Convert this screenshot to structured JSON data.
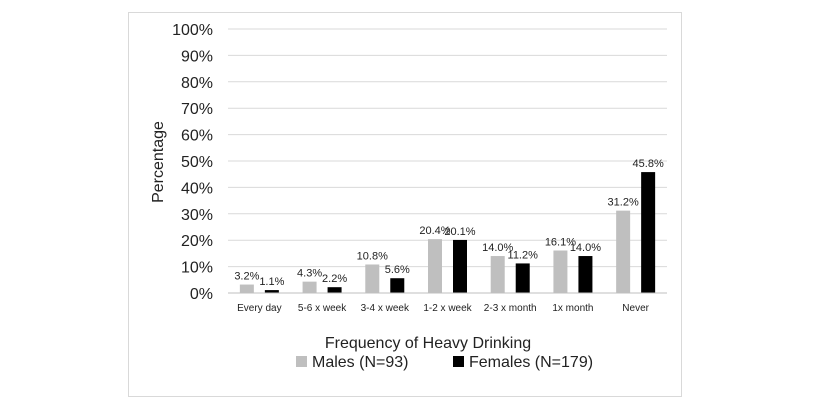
{
  "chart_data": {
    "type": "bar",
    "title": "",
    "xlabel": "Frequency of Heavy Drinking",
    "ylabel": "Percentage",
    "ylim": [
      0,
      100
    ],
    "yticks": [
      "0%",
      "10%",
      "20%",
      "30%",
      "40%",
      "50%",
      "60%",
      "70%",
      "80%",
      "90%",
      "100%"
    ],
    "grid": true,
    "legend_position": "bottom",
    "categories": [
      "Every day",
      "5-6 x week",
      "3-4 x week",
      "1-2 x week",
      "2-3 x month",
      "1x month",
      "Never"
    ],
    "series": [
      {
        "name": "Males (N=93)",
        "color": "#bfbfbf",
        "values": [
          3.2,
          4.3,
          10.8,
          20.4,
          14.0,
          16.1,
          31.2
        ],
        "labels": [
          "3.2%",
          "4.3%",
          "10.8%",
          "20.4%",
          "14.0%",
          "16.1%",
          "31.2%"
        ]
      },
      {
        "name": "Females (N=179)",
        "color": "#000000",
        "values": [
          1.1,
          2.2,
          5.6,
          20.1,
          11.2,
          14.0,
          45.8
        ],
        "labels": [
          "1.1%",
          "2.2%",
          "5.6%",
          "20.1%",
          "11.2%",
          "14.0%",
          "45.8%"
        ]
      }
    ]
  }
}
